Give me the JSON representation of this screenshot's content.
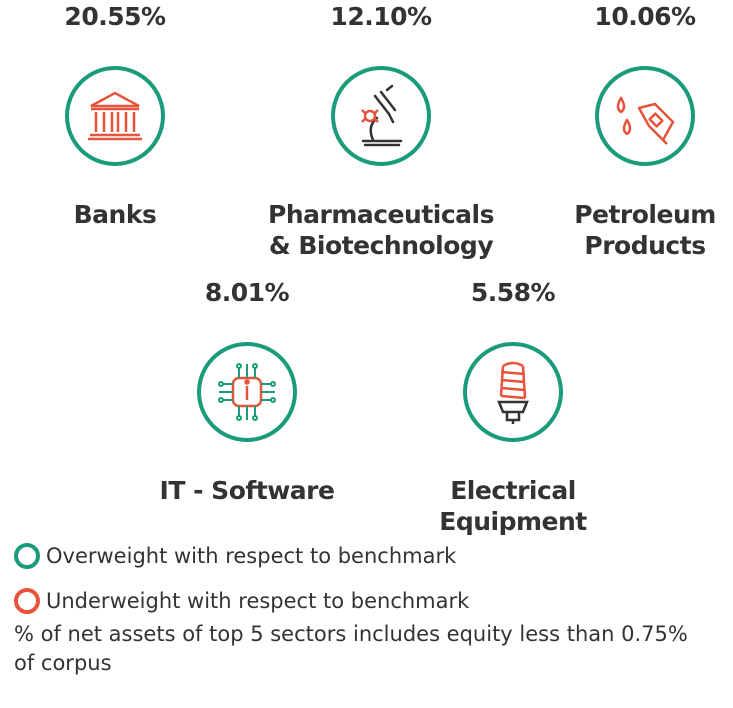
{
  "colors": {
    "overweight": "#1a9b7a",
    "underweight": "#e8533b",
    "text": "#333333"
  },
  "sectors": [
    {
      "pct": "20.55%",
      "name_lines": [
        "Banks"
      ],
      "icon": "bank-icon",
      "weight": "overweight"
    },
    {
      "pct": "12.10%",
      "name_lines": [
        "Pharmaceuticals",
        "& Biotechnology"
      ],
      "icon": "microscope-icon",
      "weight": "overweight"
    },
    {
      "pct": "10.06%",
      "name_lines": [
        "Petroleum",
        "Products"
      ],
      "icon": "fuel-nozzle-icon",
      "weight": "overweight"
    },
    {
      "pct": "8.01%",
      "name_lines": [
        "IT - Software"
      ],
      "icon": "chip-icon",
      "weight": "overweight"
    },
    {
      "pct": "5.58%",
      "name_lines": [
        "Electrical",
        "Equipment"
      ],
      "icon": "light-bulb-icon",
      "weight": "overweight"
    }
  ],
  "legend": {
    "overweight": "Overweight with respect to benchmark",
    "underweight": "Underweight with respect to benchmark"
  },
  "footnote": "% of net assets of top 5 sectors includes equity less than 0.75% of corpus"
}
